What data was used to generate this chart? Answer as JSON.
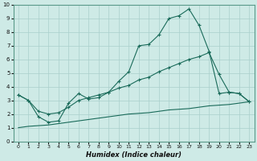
{
  "xlabel": "Humidex (Indice chaleur)",
  "bg_color": "#ceeae6",
  "grid_color": "#aacfcc",
  "line_color": "#1a6b5a",
  "xlim": [
    -0.5,
    23.5
  ],
  "ylim": [
    0,
    10
  ],
  "xticks": [
    0,
    1,
    2,
    3,
    4,
    5,
    6,
    7,
    8,
    9,
    10,
    11,
    12,
    13,
    14,
    15,
    16,
    17,
    18,
    19,
    20,
    21,
    22,
    23
  ],
  "yticks": [
    0,
    1,
    2,
    3,
    4,
    5,
    6,
    7,
    8,
    9,
    10
  ],
  "peak_x": [
    0,
    1,
    2,
    3,
    4,
    5,
    6,
    7,
    8,
    9,
    10,
    11,
    12,
    13,
    14,
    15,
    16,
    17,
    18,
    19,
    20,
    21,
    22,
    23
  ],
  "peak_y": [
    3.4,
    3.0,
    1.8,
    1.4,
    1.5,
    2.8,
    3.5,
    3.1,
    3.2,
    3.6,
    4.4,
    5.1,
    7.0,
    7.1,
    7.8,
    9.0,
    9.2,
    9.7,
    8.5,
    6.6,
    3.5,
    3.6,
    3.5,
    2.9
  ],
  "diag_x": [
    0,
    1,
    2,
    3,
    4,
    5,
    6,
    7,
    8,
    9,
    10,
    11,
    12,
    13,
    14,
    15,
    16,
    17,
    18,
    19,
    20,
    21,
    22,
    23
  ],
  "diag_y": [
    3.4,
    3.0,
    2.2,
    2.0,
    2.1,
    2.5,
    3.0,
    3.2,
    3.4,
    3.6,
    3.9,
    4.1,
    4.5,
    4.7,
    5.1,
    5.4,
    5.7,
    6.0,
    6.2,
    6.5,
    4.9,
    3.6,
    3.5,
    2.9
  ],
  "bot_x": [
    0,
    1,
    2,
    3,
    4,
    5,
    6,
    7,
    8,
    9,
    10,
    11,
    12,
    13,
    14,
    15,
    16,
    17,
    18,
    19,
    20,
    21,
    22,
    23
  ],
  "bot_y": [
    1.0,
    1.1,
    1.15,
    1.2,
    1.3,
    1.4,
    1.5,
    1.6,
    1.7,
    1.8,
    1.9,
    2.0,
    2.05,
    2.1,
    2.2,
    2.3,
    2.35,
    2.4,
    2.5,
    2.6,
    2.65,
    2.7,
    2.8,
    2.9
  ]
}
